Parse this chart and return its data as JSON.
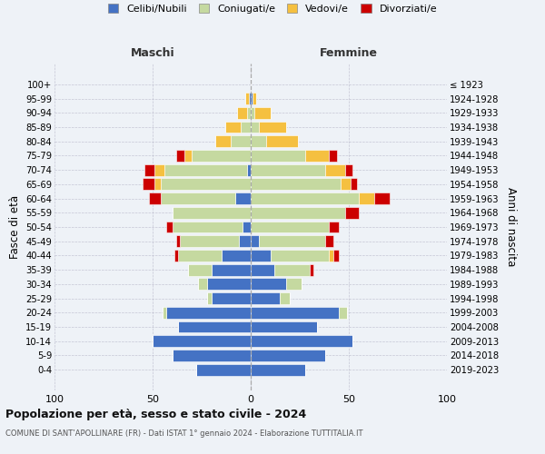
{
  "age_groups": [
    "0-4",
    "5-9",
    "10-14",
    "15-19",
    "20-24",
    "25-29",
    "30-34",
    "35-39",
    "40-44",
    "45-49",
    "50-54",
    "55-59",
    "60-64",
    "65-69",
    "70-74",
    "75-79",
    "80-84",
    "85-89",
    "90-94",
    "95-99",
    "100+"
  ],
  "birth_years": [
    "2019-2023",
    "2014-2018",
    "2009-2013",
    "2004-2008",
    "1999-2003",
    "1994-1998",
    "1989-1993",
    "1984-1988",
    "1979-1983",
    "1974-1978",
    "1969-1973",
    "1964-1968",
    "1959-1963",
    "1954-1958",
    "1949-1953",
    "1944-1948",
    "1939-1943",
    "1934-1938",
    "1929-1933",
    "1924-1928",
    "≤ 1923"
  ],
  "males": {
    "celibi": [
      28,
      40,
      50,
      37,
      43,
      20,
      22,
      20,
      15,
      6,
      4,
      0,
      8,
      0,
      2,
      0,
      0,
      0,
      0,
      1,
      0
    ],
    "coniugati": [
      0,
      0,
      0,
      0,
      2,
      2,
      5,
      12,
      22,
      30,
      36,
      40,
      38,
      46,
      42,
      30,
      10,
      5,
      2,
      0,
      0
    ],
    "vedovi": [
      0,
      0,
      0,
      0,
      0,
      0,
      0,
      0,
      0,
      0,
      0,
      0,
      0,
      3,
      5,
      4,
      8,
      8,
      5,
      2,
      0
    ],
    "divorziati": [
      0,
      0,
      0,
      0,
      0,
      0,
      0,
      0,
      2,
      2,
      3,
      0,
      6,
      6,
      5,
      4,
      0,
      0,
      0,
      0,
      0
    ]
  },
  "females": {
    "nubili": [
      28,
      38,
      52,
      34,
      45,
      15,
      18,
      12,
      10,
      4,
      0,
      0,
      0,
      0,
      0,
      0,
      0,
      0,
      0,
      1,
      0
    ],
    "coniugate": [
      0,
      0,
      0,
      0,
      4,
      5,
      8,
      18,
      30,
      34,
      40,
      48,
      55,
      46,
      38,
      28,
      8,
      4,
      2,
      0,
      0
    ],
    "vedove": [
      0,
      0,
      0,
      0,
      0,
      0,
      0,
      0,
      2,
      0,
      0,
      0,
      8,
      5,
      10,
      12,
      16,
      14,
      8,
      2,
      0
    ],
    "divorziate": [
      0,
      0,
      0,
      0,
      0,
      0,
      0,
      2,
      3,
      4,
      5,
      7,
      8,
      3,
      4,
      4,
      0,
      0,
      0,
      0,
      0
    ]
  },
  "colors": {
    "celibi": "#4472C4",
    "coniugati": "#c5d9a0",
    "vedovi": "#f5c040",
    "divorziati": "#cc0000"
  },
  "xlim": [
    -100,
    100
  ],
  "xticks": [
    -100,
    -50,
    0,
    50,
    100
  ],
  "xticklabels": [
    "100",
    "50",
    "0",
    "50",
    "100"
  ],
  "title_main": "Popolazione per età, sesso e stato civile - 2024",
  "title_sub": "COMUNE DI SANT’APOLLINARE (FR) - Dati ISTAT 1° gennaio 2024 - Elaborazione TUTTITALIA.IT",
  "ylabel_left": "Fasce di età",
  "ylabel_right": "Anni di nascita",
  "header_left": "Maschi",
  "header_right": "Femmine",
  "legend_labels": [
    "Celibi/Nubili",
    "Coniugati/e",
    "Vedovi/e",
    "Divorziati/e"
  ],
  "background_color": "#eef2f7",
  "bar_edge_color": "white",
  "grid_color": "#bbbbcc"
}
